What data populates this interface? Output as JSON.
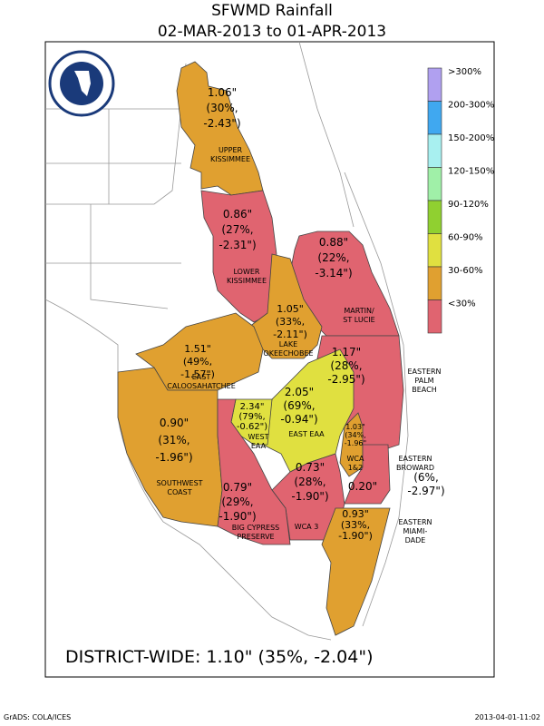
{
  "header": {
    "title": "SFWMD Rainfall",
    "subtitle": "02-MAR-2013 to 01-APR-2013"
  },
  "regions": [
    {
      "name": [
        "UPPER",
        "KISSIMMEE"
      ],
      "lines": [
        "1.06\"",
        "(30%,",
        "-2.43\")"
      ]
    },
    {
      "name": [
        "LOWER",
        "KISSIMMEE"
      ],
      "lines": [
        "0.86\"",
        "(27%,",
        "-2.31\")"
      ]
    },
    {
      "name": [
        "MARTIN/",
        "ST LUCIE"
      ],
      "lines": [
        "0.88\"",
        "(22%,",
        "-3.14\")"
      ]
    },
    {
      "name": [
        "LAKE",
        "OKEECHOBEE"
      ],
      "lines": [
        "1.05\"",
        "(33%,",
        "-2.11\")"
      ]
    },
    {
      "name": [
        "EAST",
        "CALOOSAHATCHEE"
      ],
      "lines": [
        "1.51\"",
        "(49%,",
        "-1.57\")"
      ]
    },
    {
      "name": [
        "EASTERN",
        "PALM",
        "BEACH"
      ],
      "lines": [
        "1.17\"",
        "(28%,",
        "-2.95\")"
      ]
    },
    {
      "name": [
        "EAST EAA"
      ],
      "lines": [
        "2.05\"",
        "(69%,",
        "-0.94\")"
      ]
    },
    {
      "name": [
        "WEST",
        "EAA"
      ],
      "lines": [
        "2.34\"",
        "(79%,",
        "-0.62\")"
      ]
    },
    {
      "name": [
        "SOUTHWEST",
        "COAST"
      ],
      "lines": [
        "0.90\"",
        "(31%,",
        "-1.96\")"
      ]
    },
    {
      "name": [
        "WCA",
        "1&2"
      ],
      "lines": [
        "1.03\"",
        "(34%,",
        "-1.96\""
      ]
    },
    {
      "name": [
        "EASTERN",
        "BROWARD"
      ],
      "lines": [
        "0.20\"",
        "(6%,",
        "-2.97\")"
      ]
    },
    {
      "name": [
        "WCA 3"
      ],
      "lines": [
        "0.73\"",
        "(28%,",
        "-1.90\")"
      ]
    },
    {
      "name": [
        "BIG CYPRESS",
        "PRESERVE"
      ],
      "lines": [
        "0.79\"",
        "(29%,",
        "-1.90\")"
      ]
    },
    {
      "name": [
        "EASTERN",
        "MIAMI-",
        "DADE"
      ],
      "lines": [
        "0.93\"",
        "(33%,",
        "-1.90\")"
      ]
    }
  ],
  "legend": [
    ">300%",
    "200-300%",
    "150-200%",
    "120-150%",
    "90-120%",
    "60-90%",
    "30-60%",
    "<30%"
  ],
  "summary": "DISTRICT-WIDE: 1.10\"   (35%, -2.04\")",
  "footer": {
    "left": "GrADS: COLA/ICES",
    "right": "2013-04-01-11:02"
  }
}
